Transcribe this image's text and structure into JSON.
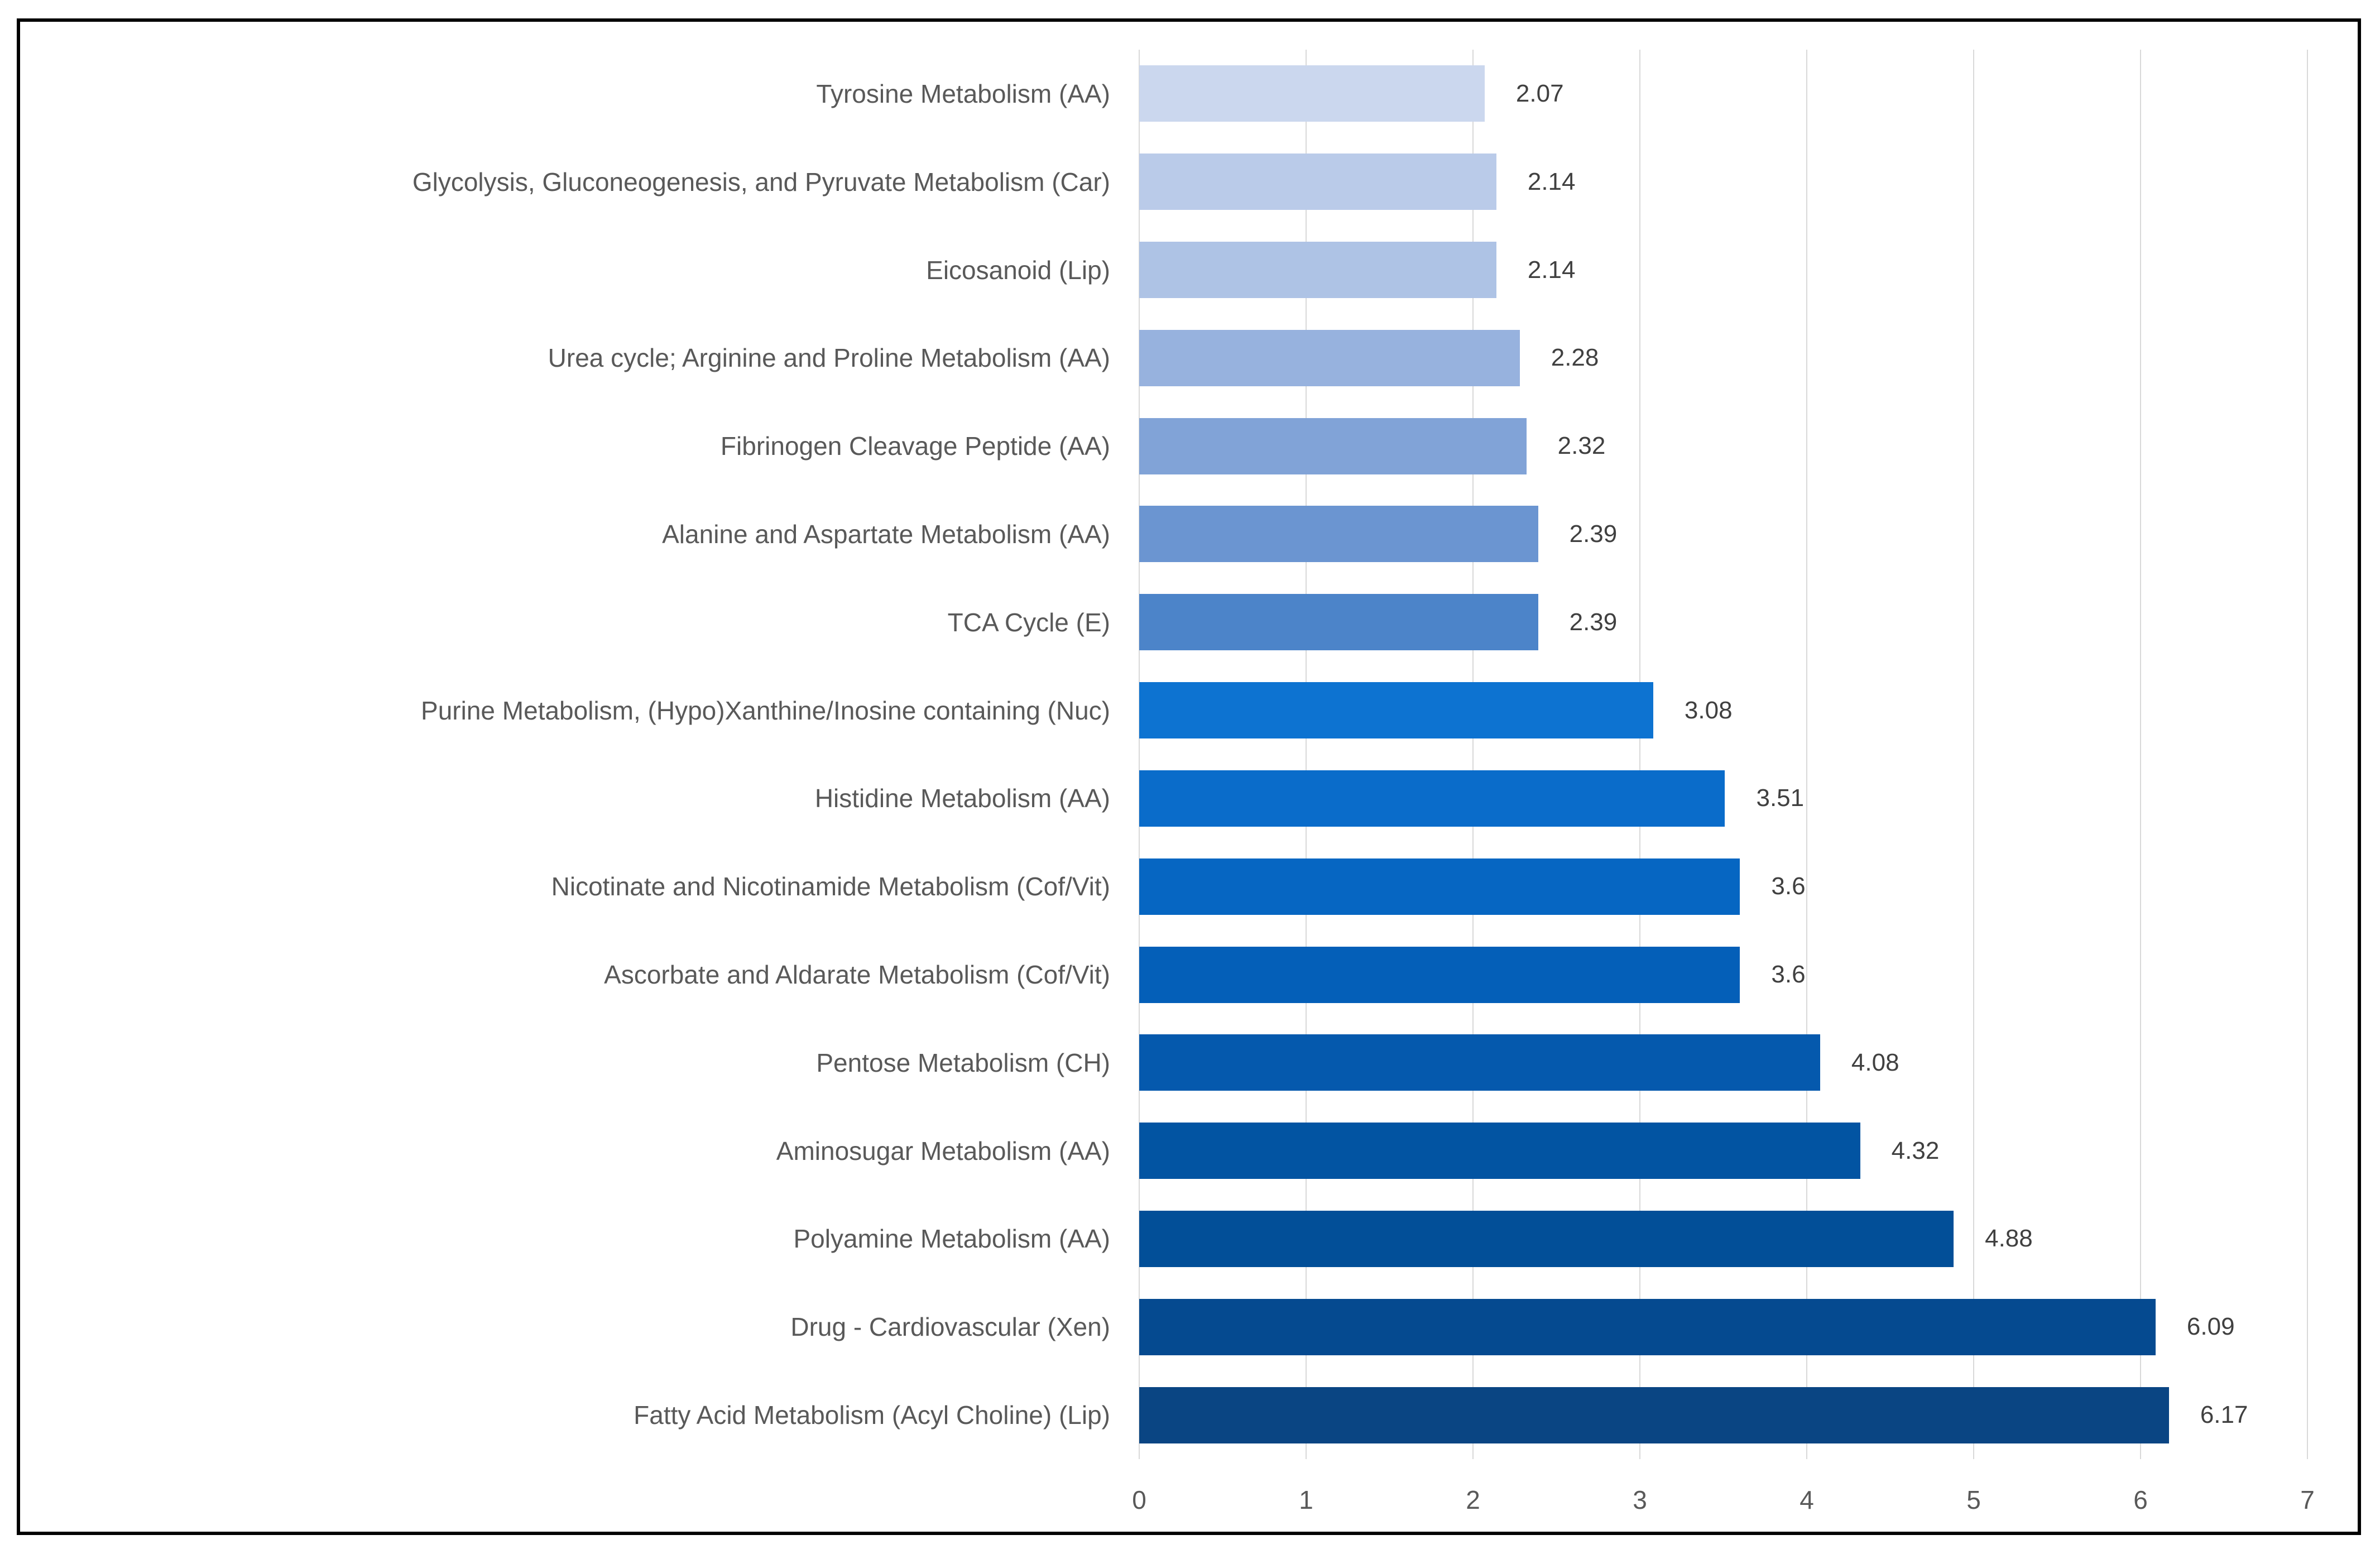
{
  "chart_data": {
    "type": "bar",
    "orientation": "horizontal",
    "title": "",
    "xlabel": "",
    "ylabel": "",
    "xlim": [
      0,
      7
    ],
    "x_ticks": [
      "0",
      "1",
      "2",
      "3",
      "4",
      "5",
      "6",
      "7"
    ],
    "grid": true,
    "legend": "none",
    "categories": [
      "Tyrosine Metabolism (AA)",
      "Glycolysis, Gluconeogenesis, and Pyruvate Metabolism (Car)",
      "Eicosanoid (Lip)",
      "Urea cycle; Arginine and Proline Metabolism (AA)",
      "Fibrinogen Cleavage Peptide (AA)",
      "Alanine and Aspartate Metabolism (AA)",
      "TCA Cycle (E)",
      "Purine Metabolism, (Hypo)Xanthine/Inosine containing (Nuc)",
      "Histidine Metabolism (AA)",
      "Nicotinate and Nicotinamide Metabolism (Cof/Vit)",
      "Ascorbate and Aldarate Metabolism (Cof/Vit)",
      "Pentose Metabolism (CH)",
      "Aminosugar Metabolism (AA)",
      "Polyamine Metabolism (AA)",
      "Drug - Cardiovascular (Xen)",
      "Fatty Acid Metabolism (Acyl Choline) (Lip)"
    ],
    "values": [
      2.07,
      2.14,
      2.14,
      2.28,
      2.32,
      2.39,
      2.39,
      3.08,
      3.51,
      3.6,
      3.6,
      4.08,
      4.32,
      4.88,
      6.09,
      6.17
    ],
    "value_labels": [
      "2.07",
      "2.14",
      "2.14",
      "2.28",
      "2.32",
      "2.39",
      "2.39",
      "3.08",
      "3.51",
      "3.6",
      "3.6",
      "4.08",
      "4.32",
      "4.88",
      "6.09",
      "6.17"
    ],
    "bar_colors": [
      "#CBD7EE",
      "#BACBE9",
      "#AEC3E5",
      "#97B2DE",
      "#81A3D7",
      "#6B95D1",
      "#4C84C9",
      "#0D73D1",
      "#0A6CCA",
      "#0666C2",
      "#045FB8",
      "#0559AD",
      "#0254A2",
      "#024F98",
      "#054A90",
      "#0A4583"
    ],
    "colors": {
      "gridline": "#D9D9D9",
      "category_label_text": "#595959",
      "tick_label_text": "#595959",
      "value_label_text": "#404040",
      "frame_border": "#000000",
      "background": "#FFFFFF"
    }
  }
}
